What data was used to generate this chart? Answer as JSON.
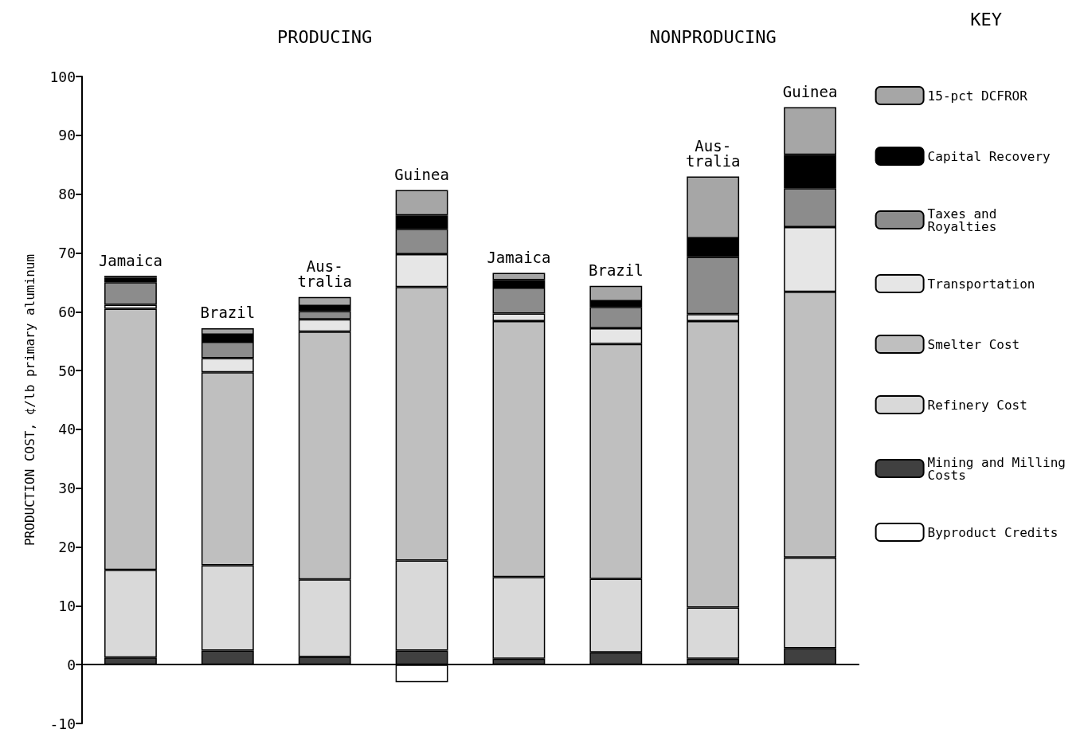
{
  "chart_data": {
    "type": "bar",
    "stacked": true,
    "ylabel": "PRODUCTION COST, ¢/lb primary aluminum",
    "legend_title": "KEY",
    "legend": "right",
    "annotations": [
      "PRODUCING",
      "NONPRODUCING"
    ],
    "categories": [
      "Jamaica",
      "Brazil",
      "Aus-\ntralia",
      "Guinea",
      "Jamaica",
      "Brazil",
      "Aus-\ntralia",
      "Guinea"
    ],
    "ylim": [
      -10,
      100
    ],
    "yticks": [
      -10,
      0,
      10,
      20,
      30,
      40,
      50,
      60,
      70,
      80,
      90,
      100
    ],
    "series": [
      {
        "name": "Byproduct Credits",
        "color": "#ffffff",
        "values": [
          null,
          null,
          null,
          -3.0,
          null,
          null,
          null,
          null
        ]
      },
      {
        "name": "Mining and Milling\nCosts",
        "color": "#404040",
        "values": [
          1.2,
          2.4,
          1.3,
          2.4,
          1.0,
          2.1,
          1.0,
          2.8
        ]
      },
      {
        "name": "Refinery Cost",
        "color": "#d9d9d9",
        "values": [
          14.9,
          14.5,
          13.2,
          15.3,
          13.9,
          12.5,
          8.7,
          15.4
        ]
      },
      {
        "name": "Smelter Cost",
        "color": "#bfbfbf",
        "values": [
          44.4,
          32.8,
          42.1,
          46.5,
          43.5,
          39.9,
          48.7,
          45.2
        ]
      },
      {
        "name": "Transportation",
        "color": "#e6e6e6",
        "values": [
          0.7,
          2.4,
          2.1,
          5.6,
          1.3,
          2.7,
          1.2,
          11.0
        ]
      },
      {
        "name": "Taxes and\nRoyalties",
        "color": "#8c8c8c",
        "values": [
          3.8,
          2.8,
          1.4,
          4.3,
          4.4,
          3.6,
          9.7,
          6.6
        ]
      },
      {
        "name": "Capital Recovery",
        "color": "#000000",
        "values": [
          0.8,
          1.2,
          0.9,
          2.3,
          1.3,
          1.0,
          3.2,
          5.7
        ]
      },
      {
        "name": "15-pct DCFROR",
        "color": "#a6a6a6",
        "values": [
          0.3,
          1.1,
          1.5,
          4.3,
          1.2,
          2.6,
          10.5,
          8.1
        ]
      }
    ]
  }
}
